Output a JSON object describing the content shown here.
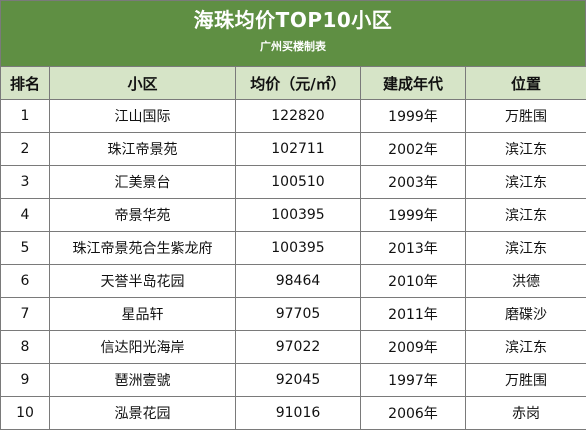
{
  "banner": {
    "title": "海珠均价TOP10小区",
    "subtitle": "广州买楼制表"
  },
  "table": {
    "headers": [
      "排名",
      "小区",
      "均价（元/㎡）",
      "建成年代",
      "位置"
    ],
    "rows": [
      [
        "1",
        "江山国际",
        "122820",
        "1999年",
        "万胜围"
      ],
      [
        "2",
        "珠江帝景苑",
        "102711",
        "2002年",
        "滨江东"
      ],
      [
        "3",
        "汇美景台",
        "100510",
        "2003年",
        "滨江东"
      ],
      [
        "4",
        "帝景华苑",
        "100395",
        "1999年",
        "滨江东"
      ],
      [
        "5",
        "珠江帝景苑合生紫龙府",
        "100395",
        "2013年",
        "滨江东"
      ],
      [
        "6",
        "天誉半岛花园",
        "98464",
        "2010年",
        "洪德"
      ],
      [
        "7",
        "星品轩",
        "97705",
        "2011年",
        "磨碟沙"
      ],
      [
        "8",
        "信达阳光海岸",
        "97022",
        "2009年",
        "滨江东"
      ],
      [
        "9",
        "琶洲壹號",
        "92045",
        "1997年",
        "万胜围"
      ],
      [
        "10",
        "泓景花园",
        "91016",
        "2006年",
        "赤岗"
      ]
    ]
  },
  "colors": {
    "banner_bg": "#5f8f43",
    "header_bg": "#d6e4c7",
    "border": "#7a7a7a"
  }
}
